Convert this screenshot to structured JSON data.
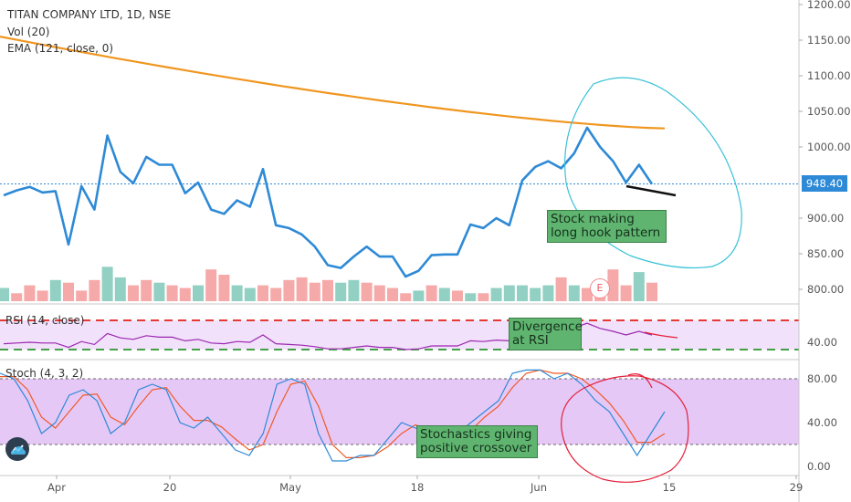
{
  "header": {
    "title": "TITAN COMPANY LTD, 1D, NSE",
    "vol_label": "Vol (20)",
    "ema_label": "EMA (121, close, 0)"
  },
  "price_axis": {
    "ticks": [
      "1200.00",
      "1150.00",
      "1100.00",
      "1050.00",
      "1000.00",
      "900.00",
      "850.00",
      "800.00"
    ],
    "tick_values": [
      1200,
      1150,
      1100,
      1050,
      1000,
      900,
      850,
      800
    ],
    "current_price_label": "948.40",
    "current_price": 948.4
  },
  "rsi_pane": {
    "label": "RSI (14, close)",
    "ticks": [
      "40.00"
    ]
  },
  "stoch_pane": {
    "label": "Stoch (4, 3, 2)",
    "ticks": [
      "80.00",
      "40.00",
      "0.00"
    ],
    "tick_values": [
      80,
      40,
      0
    ]
  },
  "time_axis": {
    "labels": [
      "Apr",
      "20",
      "May",
      "18",
      "Jun",
      "15",
      "29"
    ]
  },
  "annotations": {
    "hook_note": "Stock making long hook pattern",
    "hook_note_line1": "Stock making",
    "hook_note_line2": "long hook pattern",
    "rsi_note_line1": "Divergence",
    "rsi_note_line2": "at RSI",
    "stoch_note_line1": "Stochastics giving",
    "stoch_note_line2": "positive crossover",
    "earnings_badge": "E"
  },
  "colors": {
    "price_line": "#2e8ad6",
    "ema_line": "#f0961f",
    "volume_up": "#7fc8b8",
    "volume_down": "#f49a9a",
    "rsi_line": "#9c27b0",
    "rsi_band": "#f1e1fa",
    "stoch_k": "#2e8ad6",
    "stoch_d": "#f05a28",
    "stoch_band": "#e6c8f7",
    "circle_cyan": "#38c2d6",
    "circle_red": "#e5213a",
    "annotation_box": "#5fb570"
  },
  "chart_data": {
    "type": "line",
    "title": "TITAN COMPANY LTD, 1D, NSE",
    "price_series": {
      "name": "",
      "values": [
        932,
        939,
        944,
        936,
        938,
        863,
        945,
        912,
        1016,
        965,
        949,
        986,
        975,
        975,
        935,
        950,
        912,
        906,
        925,
        916,
        969,
        890,
        886,
        877,
        860,
        834,
        830,
        846,
        860,
        846,
        846,
        818,
        826,
        848,
        849,
        849,
        891,
        886,
        900,
        890,
        953,
        972,
        980,
        970,
        991,
        1027,
        1000,
        980,
        950,
        975,
        948
      ]
    },
    "ema_series": {
      "name": "EMA (121, close, 0)",
      "start": 1155,
      "end": 1026
    },
    "volume_series": {
      "name": "Vol (20)",
      "values": [
        5,
        3,
        6,
        4,
        8,
        7,
        4,
        8,
        13,
        9,
        6,
        8,
        7,
        6,
        5,
        6,
        12,
        10,
        6,
        5,
        6,
        5,
        8,
        9,
        7,
        8,
        7,
        8,
        7,
        6,
        5,
        3,
        4,
        6,
        5,
        4,
        3,
        3,
        5,
        6,
        6,
        5,
        6,
        9,
        6,
        5,
        7,
        12,
        6,
        11,
        7
      ],
      "up": [
        1,
        0,
        0,
        0,
        1,
        0,
        0,
        0,
        1,
        1,
        0,
        0,
        1,
        0,
        0,
        1,
        0,
        0,
        1,
        1,
        0,
        0,
        0,
        0,
        0,
        0,
        1,
        1,
        0,
        0,
        0,
        0,
        1,
        0,
        1,
        0,
        1,
        0,
        1,
        1,
        1,
        1,
        1,
        0,
        1,
        0,
        0,
        0,
        0,
        1,
        0
      ]
    },
    "rsi_series": {
      "name": "RSI (14, close)",
      "values": [
        38,
        39,
        40,
        39,
        39,
        33,
        41,
        37,
        52,
        46,
        44,
        49,
        47,
        47,
        42,
        44,
        39,
        38,
        41,
        40,
        50,
        38,
        37,
        36,
        34,
        31,
        31,
        33,
        35,
        33,
        33,
        30,
        31,
        35,
        35,
        35,
        42,
        41,
        43,
        42,
        53,
        57,
        58,
        56,
        60,
        66,
        59,
        55,
        50,
        55,
        50
      ]
    },
    "stoch_k": {
      "name": "",
      "values": [
        85,
        80,
        60,
        30,
        40,
        65,
        70,
        60,
        30,
        40,
        70,
        75,
        70,
        40,
        35,
        45,
        30,
        15,
        10,
        30,
        75,
        80,
        75,
        30,
        5,
        5,
        10,
        10,
        25,
        40,
        35,
        30,
        20,
        30,
        40,
        50,
        60,
        85,
        88,
        88,
        80,
        85,
        75,
        60,
        50,
        30,
        10,
        30,
        50
      ]
    },
    "stoch_d": {
      "name": "",
      "values": [
        82,
        82,
        70,
        45,
        35,
        50,
        65,
        66,
        45,
        38,
        55,
        70,
        72,
        55,
        42,
        42,
        36,
        25,
        15,
        20,
        50,
        75,
        78,
        55,
        20,
        8,
        8,
        10,
        18,
        30,
        38,
        33,
        25,
        25,
        33,
        45,
        55,
        72,
        85,
        88,
        85,
        85,
        80,
        70,
        58,
        42,
        22,
        22,
        30
      ]
    },
    "price_ylim": [
      780,
      1210
    ],
    "stoch_ylim": [
      -5,
      95
    ],
    "rsi_levels": [
      70,
      30
    ],
    "stoch_levels": [
      80,
      20
    ],
    "grid": false,
    "legend": "top-left"
  }
}
